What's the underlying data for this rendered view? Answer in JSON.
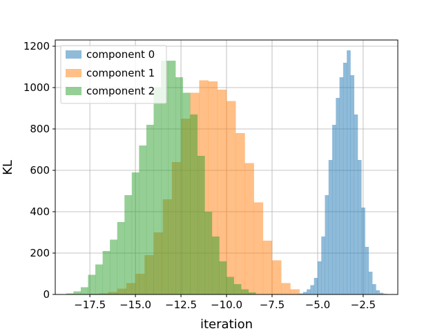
{
  "chart_data": {
    "type": "histogram",
    "title": "",
    "xlabel": "iteration",
    "ylabel": "KL",
    "xlim": [
      -19.4,
      -0.6
    ],
    "ylim": [
      0,
      1230
    ],
    "xticks": [
      -17.5,
      -15.0,
      -12.5,
      -10.0,
      -7.5,
      -5.0,
      -2.5
    ],
    "xtick_labels": [
      "−17.5",
      "−15.0",
      "−12.5",
      "−10.0",
      "−7.5",
      "−5.0",
      "−2.5"
    ],
    "yticks": [
      0,
      200,
      400,
      600,
      800,
      1000,
      1200
    ],
    "ytick_labels": [
      "0",
      "200",
      "400",
      "600",
      "800",
      "1000",
      "1200"
    ],
    "grid": true,
    "legend_position": "top-left",
    "series": [
      {
        "name": "component 0",
        "color": "#1f77b4",
        "alpha": 0.5,
        "bin_edges": [
          -6.2,
          -6.0,
          -5.8,
          -5.6,
          -5.4,
          -5.2,
          -5.0,
          -4.8,
          -4.6,
          -4.4,
          -4.2,
          -4.0,
          -3.8,
          -3.6,
          -3.4,
          -3.2,
          -3.0,
          -2.8,
          -2.6,
          -2.4,
          -2.2,
          -2.0,
          -1.8,
          -1.6,
          -1.4,
          -1.2
        ],
        "counts": [
          2,
          5,
          12,
          25,
          45,
          80,
          160,
          280,
          480,
          650,
          820,
          950,
          1050,
          1120,
          1180,
          1060,
          870,
          650,
          420,
          230,
          110,
          50,
          20,
          8,
          3
        ]
      },
      {
        "name": "component 1",
        "color": "#ff7f0e",
        "alpha": 0.5,
        "bin_edges": [
          -17.5,
          -17.0,
          -16.5,
          -16.0,
          -15.5,
          -15.0,
          -14.5,
          -14.0,
          -13.5,
          -13.0,
          -12.5,
          -12.0,
          -11.5,
          -11.0,
          -10.5,
          -10.0,
          -9.5,
          -9.0,
          -8.5,
          -8.0,
          -7.5,
          -7.0,
          -6.5,
          -6.0
        ],
        "counts": [
          3,
          6,
          12,
          28,
          55,
          100,
          190,
          300,
          460,
          640,
          850,
          975,
          1035,
          1030,
          990,
          935,
          780,
          635,
          445,
          260,
          165,
          55,
          25,
          8
        ]
      },
      {
        "name": "component 2",
        "color": "#2ca02c",
        "alpha": 0.5,
        "bin_edges": [
          -18.8,
          -18.4,
          -18.0,
          -17.6,
          -17.2,
          -16.8,
          -16.4,
          -16.0,
          -15.6,
          -15.2,
          -14.8,
          -14.4,
          -14.0,
          -13.6,
          -13.2,
          -12.8,
          -12.4,
          -12.0,
          -11.6,
          -11.2,
          -10.8,
          -10.4,
          -10.0,
          -9.6,
          -9.2,
          -8.8,
          -8.4
        ],
        "counts": [
          5,
          15,
          35,
          95,
          145,
          210,
          265,
          350,
          480,
          590,
          720,
          820,
          1000,
          1130,
          1130,
          1050,
          975,
          870,
          670,
          400,
          280,
          160,
          85,
          50,
          25,
          10
        ]
      }
    ]
  }
}
